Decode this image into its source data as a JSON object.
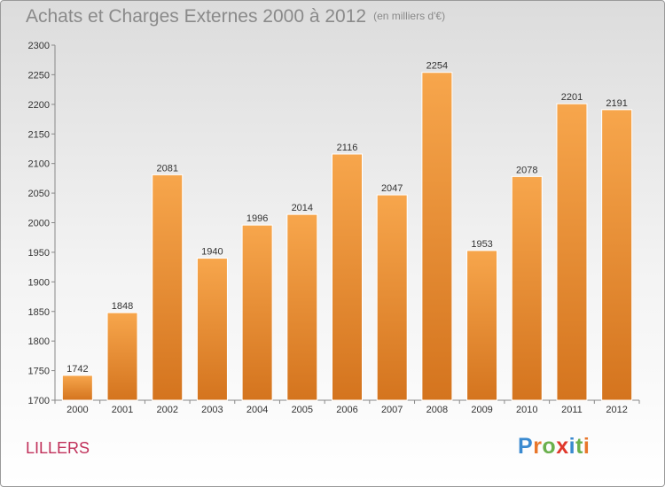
{
  "title": "Achats et Charges Externes 2000 à 2012",
  "unit": "(en milliers d'€)",
  "city": "LILLERS",
  "logo": {
    "letters": [
      "P",
      "r",
      "o",
      "x",
      "i",
      "t",
      "i"
    ],
    "colors": [
      "#3a8ad0",
      "#e8762a",
      "#6ab04c",
      "#e0382c",
      "#3a8ad0",
      "#6ab04c",
      "#e8762a"
    ]
  },
  "chart_data": {
    "type": "bar",
    "categories": [
      "2000",
      "2001",
      "2002",
      "2003",
      "2004",
      "2005",
      "2006",
      "2007",
      "2008",
      "2009",
      "2010",
      "2011",
      "2012"
    ],
    "values": [
      1742,
      1848,
      2081,
      1940,
      1996,
      2014,
      2116,
      2047,
      2254,
      1953,
      2078,
      2201,
      2191
    ],
    "ylim": [
      1700,
      2300
    ],
    "yticks": [
      1700,
      1750,
      1800,
      1850,
      1900,
      1950,
      2000,
      2050,
      2100,
      2150,
      2200,
      2250,
      2300
    ],
    "grid": false,
    "bar_colors": {
      "top": "#f7a64c",
      "bottom": "#d4741e"
    }
  }
}
